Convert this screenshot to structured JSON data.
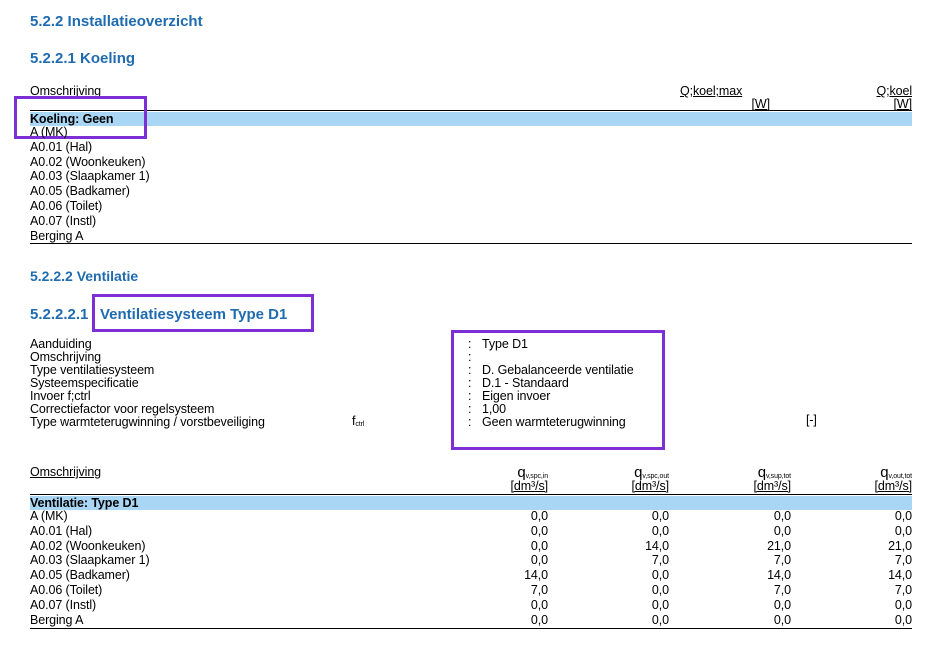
{
  "headings": {
    "installatie": "5.2.2 Installatieoverzicht",
    "koeling": "5.2.2.1 Koeling",
    "ventilatie": "5.2.2.2 Ventilatie",
    "systeem_prefix": "5.2.2.2.1",
    "systeem_title": "Ventilatiesysteem  Type D1"
  },
  "koeling_table": {
    "col_desc": "Omschrijving",
    "col_qmax": "Q;koel;max",
    "col_qkoel": "Q;koel",
    "unit": "[W]",
    "group_row": "Koeling: Geen",
    "rows": [
      "A (MK)",
      "A0.01 (Hal)",
      "A0.02 (Woonkeuken)",
      "A0.03 (Slaapkamer 1)",
      "A0.05 (Badkamer)",
      "A0.06 (Toilet)",
      "A0.07 (Instl)",
      "Berging A"
    ]
  },
  "system_props": {
    "labels": [
      "Aanduiding",
      "Omschrijving",
      "Type ventilatiesysteem",
      "Systeemspecificatie",
      "Invoer f;ctrl",
      "Correctiefactor voor regelsysteem",
      "Type warmteterugwinning / vorstbeveiliging"
    ],
    "values": [
      "Type D1",
      "",
      "D. Gebalanceerde ventilatie",
      "D.1 - Standaard",
      "Eigen invoer",
      "1,00",
      "Geen warmteterugwinning"
    ],
    "symbol_base": "f",
    "symbol_sub": "ctrl",
    "unit": "[-]",
    "colon": ":"
  },
  "vent_table": {
    "col_desc": "Omschrijving",
    "cols": [
      {
        "base": "q",
        "sub": "v,spc,in"
      },
      {
        "base": "q",
        "sub": "v,spc,out"
      },
      {
        "base": "q",
        "sub": "v,sup,tot"
      },
      {
        "base": "q",
        "sub": "v,out,tot"
      }
    ],
    "unit": "[dm³/s]",
    "group_row": "Ventilatie: Type D1",
    "rows": [
      {
        "name": "A (MK)",
        "v": [
          "0,0",
          "0,0",
          "0,0",
          "0,0"
        ]
      },
      {
        "name": "A0.01 (Hal)",
        "v": [
          "0,0",
          "0,0",
          "0,0",
          "0,0"
        ]
      },
      {
        "name": "A0.02 (Woonkeuken)",
        "v": [
          "0,0",
          "14,0",
          "21,0",
          "21,0"
        ]
      },
      {
        "name": "A0.03 (Slaapkamer 1)",
        "v": [
          "0,0",
          "7,0",
          "7,0",
          "7,0"
        ]
      },
      {
        "name": "A0.05 (Badkamer)",
        "v": [
          "14,0",
          "0,0",
          "14,0",
          "14,0"
        ]
      },
      {
        "name": "A0.06 (Toilet)",
        "v": [
          "7,0",
          "0,0",
          "7,0",
          "7,0"
        ]
      },
      {
        "name": "A0.07 (Instl)",
        "v": [
          "0,0",
          "0,0",
          "0,0",
          "0,0"
        ]
      },
      {
        "name": "Berging A",
        "v": [
          "0,0",
          "0,0",
          "0,0",
          "0,0"
        ]
      }
    ]
  },
  "colors": {
    "heading": "#1f6bb0",
    "band": "#a9d6f5",
    "highlight_box": "#7b2fd4"
  }
}
